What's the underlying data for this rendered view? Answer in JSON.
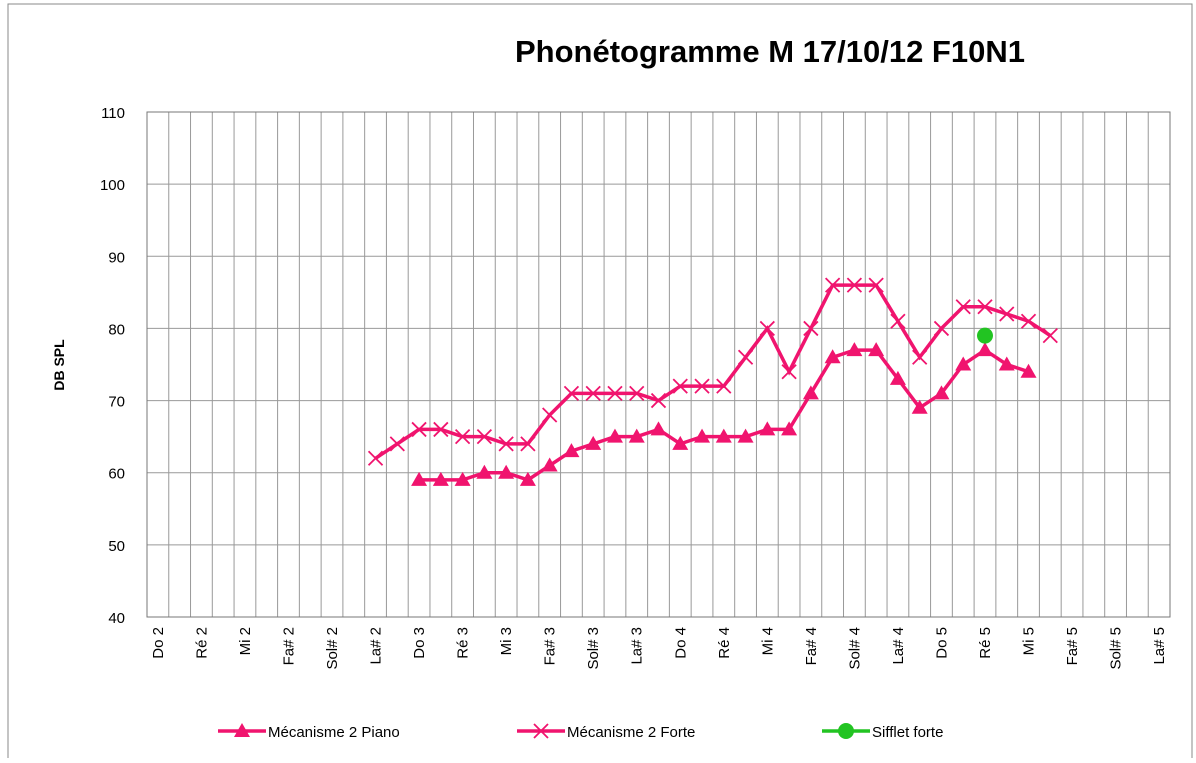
{
  "chart_data": {
    "type": "line",
    "title": "Phonétogramme M 17/10/12 F10N1",
    "y_label": "DB SPL",
    "categories": [
      "Do 2",
      null,
      "Ré 2",
      null,
      "Mi 2",
      null,
      "Fa# 2",
      null,
      "Sol# 2",
      null,
      "La# 2",
      null,
      "Do 3",
      null,
      "Ré 3",
      null,
      "Mi 3",
      null,
      "Fa# 3",
      null,
      "Sol# 3",
      null,
      "La# 3",
      null,
      "Do 4",
      null,
      "Ré 4",
      null,
      "Mi 4",
      null,
      "Fa# 4",
      null,
      "Sol# 4",
      null,
      "La# 4",
      null,
      "Do 5",
      null,
      "Ré 5",
      null,
      "Mi 5",
      null,
      "Fa# 5",
      null,
      "Sol# 5",
      null,
      "La# 5"
    ],
    "series": [
      {
        "name": "Mécanisme 2 Piano",
        "color": "#f0146e",
        "marker": "triangle",
        "values": [
          null,
          null,
          null,
          null,
          null,
          null,
          null,
          null,
          null,
          null,
          null,
          null,
          59,
          59,
          59,
          60,
          60,
          59,
          61,
          63,
          64,
          65,
          65,
          66,
          64,
          65,
          65,
          65,
          66,
          66,
          71,
          76,
          77,
          77,
          73,
          69,
          71,
          75,
          77,
          75,
          74,
          null,
          null,
          null,
          null,
          null,
          null
        ]
      },
      {
        "name": "Mécanisme 2 Forte",
        "color": "#f0146e",
        "marker": "x",
        "values": [
          null,
          null,
          null,
          null,
          null,
          null,
          null,
          null,
          null,
          null,
          62,
          64,
          66,
          66,
          65,
          65,
          64,
          64,
          68,
          71,
          71,
          71,
          71,
          70,
          72,
          72,
          72,
          76,
          80,
          74,
          80,
          86,
          86,
          86,
          81,
          76,
          80,
          83,
          83,
          82,
          81,
          79,
          null,
          null,
          null,
          null,
          null
        ]
      },
      {
        "name": "Sifflet forte",
        "color": "#22c422",
        "marker": "circle",
        "values": [
          null,
          null,
          null,
          null,
          null,
          null,
          null,
          null,
          null,
          null,
          null,
          null,
          null,
          null,
          null,
          null,
          null,
          null,
          null,
          null,
          null,
          null,
          null,
          null,
          null,
          null,
          null,
          null,
          null,
          null,
          null,
          null,
          null,
          null,
          null,
          null,
          null,
          null,
          79,
          null,
          null,
          null,
          null,
          null,
          null,
          null,
          null
        ]
      }
    ],
    "ylim": [
      40,
      110
    ],
    "yticks": [
      40,
      50,
      60,
      70,
      80,
      90,
      100,
      110
    ],
    "grid": true,
    "legend": "bottom"
  }
}
